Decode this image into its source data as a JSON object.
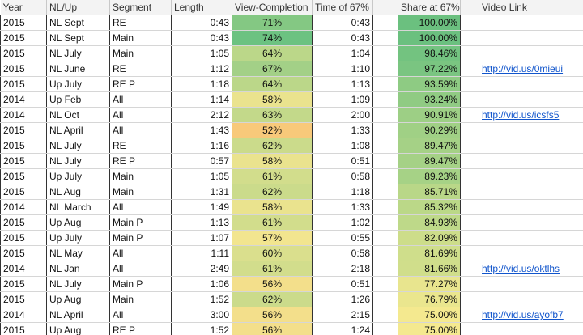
{
  "headers": {
    "year": "Year",
    "nl_up": "NL/Up",
    "segment": "Segment",
    "length": "Length",
    "view_completion": "View-Completion",
    "time_67": "Time of 67%",
    "share_67": "Share at 67%",
    "video_link": "Video Link"
  },
  "rows": [
    {
      "year": "2015",
      "nl": "NL Sept",
      "segment": "RE",
      "length": "0:43",
      "vc": "71%",
      "time67": "0:43",
      "share": "100.00%",
      "link": ""
    },
    {
      "year": "2015",
      "nl": "NL Sept",
      "segment": "Main",
      "length": "0:43",
      "vc": "74%",
      "time67": "0:43",
      "share": "100.00%",
      "link": ""
    },
    {
      "year": "2015",
      "nl": "NL July",
      "segment": "Main",
      "length": "1:05",
      "vc": "64%",
      "time67": "1:04",
      "share": "98.46%",
      "link": ""
    },
    {
      "year": "2015",
      "nl": "NL June",
      "segment": "RE",
      "length": "1:12",
      "vc": "67%",
      "time67": "1:10",
      "share": "97.22%",
      "link": "http://vid.us/0mieui"
    },
    {
      "year": "2015",
      "nl": "Up July",
      "segment": "RE P",
      "length": "1:18",
      "vc": "64%",
      "time67": "1:13",
      "share": "93.59%",
      "link": ""
    },
    {
      "year": "2014",
      "nl": "Up Feb",
      "segment": "All",
      "length": "1:14",
      "vc": "58%",
      "time67": "1:09",
      "share": "93.24%",
      "link": ""
    },
    {
      "year": "2014",
      "nl": "NL Oct",
      "segment": "All",
      "length": "2:12",
      "vc": "63%",
      "time67": "2:00",
      "share": "90.91%",
      "link": "http://vid.us/icsfs5"
    },
    {
      "year": "2015",
      "nl": "NL April",
      "segment": "All",
      "length": "1:43",
      "vc": "52%",
      "time67": "1:33",
      "share": "90.29%",
      "link": ""
    },
    {
      "year": "2015",
      "nl": "NL July",
      "segment": "RE",
      "length": "1:16",
      "vc": "62%",
      "time67": "1:08",
      "share": "89.47%",
      "link": ""
    },
    {
      "year": "2015",
      "nl": "NL July",
      "segment": "RE P",
      "length": "0:57",
      "vc": "58%",
      "time67": "0:51",
      "share": "89.47%",
      "link": ""
    },
    {
      "year": "2015",
      "nl": "Up July",
      "segment": "Main",
      "length": "1:05",
      "vc": "61%",
      "time67": "0:58",
      "share": "89.23%",
      "link": ""
    },
    {
      "year": "2015",
      "nl": "NL Aug",
      "segment": "Main",
      "length": "1:31",
      "vc": "62%",
      "time67": "1:18",
      "share": "85.71%",
      "link": ""
    },
    {
      "year": "2014",
      "nl": "NL March",
      "segment": "All",
      "length": "1:49",
      "vc": "58%",
      "time67": "1:33",
      "share": "85.32%",
      "link": ""
    },
    {
      "year": "2015",
      "nl": "Up Aug",
      "segment": "Main P",
      "length": "1:13",
      "vc": "61%",
      "time67": "1:02",
      "share": "84.93%",
      "link": ""
    },
    {
      "year": "2015",
      "nl": "Up July",
      "segment": "Main P",
      "length": "1:07",
      "vc": "57%",
      "time67": "0:55",
      "share": "82.09%",
      "link": ""
    },
    {
      "year": "2015",
      "nl": "NL May",
      "segment": "All",
      "length": "1:11",
      "vc": "60%",
      "time67": "0:58",
      "share": "81.69%",
      "link": ""
    },
    {
      "year": "2014",
      "nl": "NL Jan",
      "segment": "All",
      "length": "2:49",
      "vc": "61%",
      "time67": "2:18",
      "share": "81.66%",
      "link": "http://vid.us/oktlhs"
    },
    {
      "year": "2015",
      "nl": "NL July",
      "segment": "Main P",
      "length": "1:06",
      "vc": "56%",
      "time67": "0:51",
      "share": "77.27%",
      "link": ""
    },
    {
      "year": "2015",
      "nl": "Up Aug",
      "segment": "Main",
      "length": "1:52",
      "vc": "62%",
      "time67": "1:26",
      "share": "76.79%",
      "link": ""
    },
    {
      "year": "2014",
      "nl": "NL April",
      "segment": "All",
      "length": "3:00",
      "vc": "56%",
      "time67": "2:15",
      "share": "75.00%",
      "link": "http://vid.us/ayofb7"
    },
    {
      "year": "2015",
      "nl": "Up Aug",
      "segment": "RE P",
      "length": "1:52",
      "vc": "56%",
      "time67": "1:24",
      "share": "75.00%",
      "link": ""
    }
  ],
  "colors": {
    "vc_low": "#f8c97a",
    "vc_mid": "#f2e58f",
    "vc_high": "#6cc281",
    "share_low": "#f4e98f",
    "share_high": "#6bc07f",
    "link": "#1155cc"
  }
}
